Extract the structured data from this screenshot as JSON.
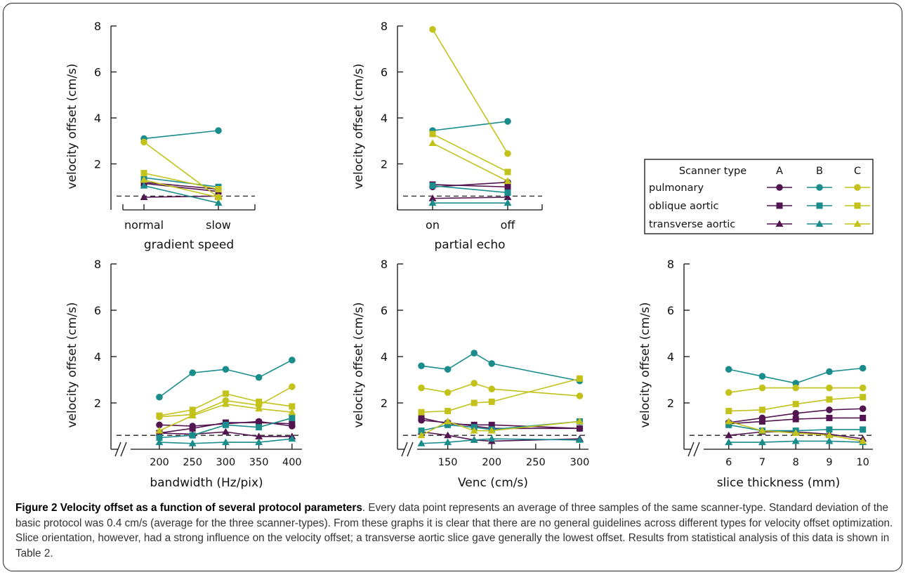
{
  "colors": {
    "A": "#521550",
    "B": "#1a8c8c",
    "C": "#c2c21a",
    "dash": "#222222",
    "axis": "#111111"
  },
  "legend": {
    "header": "Scanner type",
    "types": [
      "A",
      "B",
      "C"
    ],
    "rows": [
      {
        "label": "pulmonary",
        "marker": "circle"
      },
      {
        "label": "oblique aortic",
        "marker": "square"
      },
      {
        "label": "transverse aortic",
        "marker": "triangle"
      }
    ]
  },
  "caption": {
    "title": "Figure 2 Velocity offset as a function of several protocol parameters",
    "text": ". Every data point represents an average of three samples of the same scanner-type. Standard deviation of the basic protocol was 0.4 cm/s (average for the three scanner-types). From these graphs it is clear that there are no general guidelines across different types for velocity offset optimization. Slice orientation, however, had a strong influence on the velocity offset; a transverse aortic slice gave generally the lowest offset. Results from statistical analysis of this data is shown in Table 2."
  },
  "chart_data": [
    {
      "type": "line",
      "xlabel": "gradient speed",
      "ylabel": "velocity offset (cm/s)",
      "x_type": "category",
      "categories": [
        "normal",
        "slow"
      ],
      "ylim": [
        0,
        8
      ],
      "yticks": [
        2,
        4,
        6,
        8
      ],
      "reference_line": 0.6,
      "series": [
        {
          "scanner": "A",
          "marker": "circle",
          "values": [
            1.2,
            0.9
          ]
        },
        {
          "scanner": "A",
          "marker": "square",
          "values": [
            1.15,
            0.8
          ]
        },
        {
          "scanner": "A",
          "marker": "triangle",
          "values": [
            0.55,
            0.6
          ]
        },
        {
          "scanner": "B",
          "marker": "circle",
          "values": [
            3.1,
            3.45
          ]
        },
        {
          "scanner": "B",
          "marker": "square",
          "values": [
            1.4,
            1.0
          ]
        },
        {
          "scanner": "B",
          "marker": "triangle",
          "values": [
            1.05,
            0.3
          ]
        },
        {
          "scanner": "C",
          "marker": "circle",
          "values": [
            2.95,
            0.55
          ]
        },
        {
          "scanner": "C",
          "marker": "square",
          "values": [
            1.6,
            0.9
          ]
        },
        {
          "scanner": "C",
          "marker": "triangle",
          "values": [
            1.3,
            0.55
          ]
        }
      ]
    },
    {
      "type": "line",
      "xlabel": "partial echo",
      "ylabel": "velocity offset (cm/s)",
      "x_type": "category",
      "categories": [
        "on",
        "off"
      ],
      "ylim": [
        0,
        8
      ],
      "yticks": [
        2,
        4,
        6,
        8
      ],
      "reference_line": 0.6,
      "series": [
        {
          "scanner": "A",
          "marker": "circle",
          "values": [
            1.0,
            1.2
          ]
        },
        {
          "scanner": "A",
          "marker": "square",
          "values": [
            1.1,
            1.0
          ]
        },
        {
          "scanner": "A",
          "marker": "triangle",
          "values": [
            0.5,
            0.55
          ]
        },
        {
          "scanner": "B",
          "marker": "circle",
          "values": [
            3.45,
            3.85
          ]
        },
        {
          "scanner": "B",
          "marker": "square",
          "values": [
            1.05,
            0.75
          ]
        },
        {
          "scanner": "B",
          "marker": "triangle",
          "values": [
            0.3,
            0.3
          ]
        },
        {
          "scanner": "C",
          "marker": "circle",
          "values": [
            7.85,
            2.45
          ]
        },
        {
          "scanner": "C",
          "marker": "square",
          "values": [
            3.3,
            1.65
          ]
        },
        {
          "scanner": "C",
          "marker": "triangle",
          "values": [
            2.9,
            1.25
          ]
        }
      ]
    },
    {
      "type": "line",
      "xlabel": "bandwidth (Hz/pix)",
      "ylabel": "velocity offset (cm/s)",
      "x_type": "numeric",
      "xlim": [
        145,
        415
      ],
      "xticks": [
        200,
        250,
        300,
        350,
        400
      ],
      "axis_break": true,
      "ylim": [
        0,
        8
      ],
      "yticks": [
        2,
        4,
        6,
        8
      ],
      "reference_line": 0.6,
      "x": [
        200,
        250,
        300,
        350,
        400
      ],
      "series": [
        {
          "scanner": "A",
          "marker": "circle",
          "values": [
            1.05,
            1.0,
            1.1,
            1.2,
            1.0
          ]
        },
        {
          "scanner": "A",
          "marker": "square",
          "values": [
            0.7,
            0.9,
            1.15,
            1.15,
            1.1
          ]
        },
        {
          "scanner": "A",
          "marker": "triangle",
          "values": [
            0.7,
            0.65,
            0.75,
            0.55,
            0.55
          ]
        },
        {
          "scanner": "B",
          "marker": "circle",
          "values": [
            2.25,
            3.3,
            3.45,
            3.1,
            3.85
          ]
        },
        {
          "scanner": "B",
          "marker": "square",
          "values": [
            0.5,
            0.6,
            1.05,
            0.95,
            1.35
          ]
        },
        {
          "scanner": "B",
          "marker": "triangle",
          "values": [
            0.3,
            0.25,
            0.3,
            0.3,
            0.45
          ]
        },
        {
          "scanner": "C",
          "marker": "circle",
          "values": [
            1.4,
            1.5,
            2.1,
            1.9,
            2.7
          ]
        },
        {
          "scanner": "C",
          "marker": "square",
          "values": [
            1.45,
            1.7,
            2.4,
            2.05,
            1.85
          ]
        },
        {
          "scanner": "C",
          "marker": "triangle",
          "values": [
            0.8,
            1.45,
            1.95,
            1.75,
            1.6
          ]
        }
      ]
    },
    {
      "type": "line",
      "xlabel": "Venc (cm/s)",
      "ylabel": "velocity offset (cm/s)",
      "x_type": "numeric",
      "xlim": [
        100,
        310
      ],
      "xticks": [
        150,
        200,
        250,
        300
      ],
      "axis_break": true,
      "ylim": [
        0,
        8
      ],
      "yticks": [
        2,
        4,
        6,
        8
      ],
      "reference_line": 0.6,
      "x": [
        120,
        150,
        180,
        200,
        300
      ],
      "series": [
        {
          "scanner": "A",
          "marker": "circle",
          "values": [
            1.25,
            1.15,
            1.0,
            0.9,
            0.9
          ]
        },
        {
          "scanner": "A",
          "marker": "square",
          "values": [
            1.35,
            1.1,
            1.05,
            1.05,
            0.9
          ]
        },
        {
          "scanner": "A",
          "marker": "triangle",
          "values": [
            0.75,
            0.6,
            0.4,
            0.35,
            0.45
          ]
        },
        {
          "scanner": "B",
          "marker": "circle",
          "values": [
            3.6,
            3.45,
            4.15,
            3.7,
            2.95
          ]
        },
        {
          "scanner": "B",
          "marker": "square",
          "values": [
            0.8,
            1.05,
            0.95,
            0.85,
            1.2
          ]
        },
        {
          "scanner": "B",
          "marker": "triangle",
          "values": [
            0.25,
            0.3,
            0.4,
            0.45,
            0.4
          ]
        },
        {
          "scanner": "C",
          "marker": "circle",
          "values": [
            2.65,
            2.45,
            2.85,
            2.6,
            2.3
          ]
        },
        {
          "scanner": "C",
          "marker": "square",
          "values": [
            1.6,
            1.65,
            2.0,
            2.05,
            3.05
          ]
        },
        {
          "scanner": "C",
          "marker": "triangle",
          "values": [
            0.6,
            1.2,
            0.8,
            0.8,
            1.2
          ]
        }
      ]
    },
    {
      "type": "line",
      "xlabel": "slice thickness (mm)",
      "ylabel": "velocity offset (cm/s)",
      "x_type": "numeric",
      "xlim": [
        5.0,
        10.3
      ],
      "xticks": [
        6,
        7,
        8,
        9,
        10
      ],
      "axis_break": true,
      "ylim": [
        0,
        8
      ],
      "yticks": [
        2,
        4,
        6,
        8
      ],
      "reference_line": 0.6,
      "x": [
        6,
        7,
        8,
        9,
        10
      ],
      "series": [
        {
          "scanner": "A",
          "marker": "circle",
          "values": [
            1.15,
            1.35,
            1.55,
            1.7,
            1.75
          ]
        },
        {
          "scanner": "A",
          "marker": "square",
          "values": [
            1.1,
            1.2,
            1.3,
            1.35,
            1.35
          ]
        },
        {
          "scanner": "A",
          "marker": "triangle",
          "values": [
            0.6,
            0.75,
            0.75,
            0.65,
            0.45
          ]
        },
        {
          "scanner": "B",
          "marker": "circle",
          "values": [
            3.45,
            3.15,
            2.85,
            3.35,
            3.5
          ]
        },
        {
          "scanner": "B",
          "marker": "square",
          "values": [
            1.05,
            0.8,
            0.8,
            0.85,
            0.85
          ]
        },
        {
          "scanner": "B",
          "marker": "triangle",
          "values": [
            0.3,
            0.3,
            0.35,
            0.35,
            0.3
          ]
        },
        {
          "scanner": "C",
          "marker": "circle",
          "values": [
            2.45,
            2.65,
            2.65,
            2.65,
            2.65
          ]
        },
        {
          "scanner": "C",
          "marker": "square",
          "values": [
            1.65,
            1.7,
            1.95,
            2.15,
            2.25
          ]
        },
        {
          "scanner": "C",
          "marker": "triangle",
          "values": [
            1.2,
            0.8,
            0.7,
            0.6,
            0.35
          ]
        }
      ]
    }
  ]
}
